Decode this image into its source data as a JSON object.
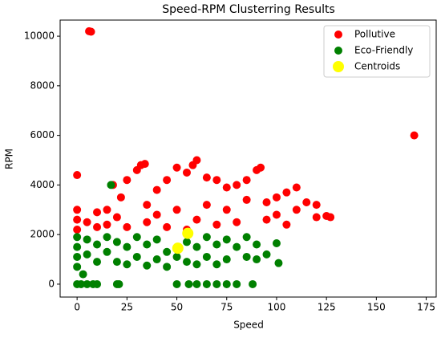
{
  "chart_data": {
    "type": "scatter",
    "title": "Speed-RPM Clusterring Results",
    "x_label": "Speed",
    "y_label": "RPM",
    "xlim": [
      -8.5,
      180
    ],
    "ylim": [
      -520,
      10650
    ],
    "xticks": [
      0,
      25,
      50,
      75,
      100,
      125,
      150,
      175
    ],
    "yticks": [
      0,
      2000,
      4000,
      6000,
      8000,
      10000
    ],
    "legend": "upper right",
    "series": [
      {
        "name": "Pollutive",
        "color": "#ff0000",
        "x": [
          0,
          6,
          7,
          169,
          0,
          0,
          0,
          5,
          10,
          10,
          15,
          15,
          18,
          20,
          22,
          25,
          25,
          30,
          32,
          34,
          35,
          35,
          40,
          40,
          45,
          45,
          50,
          50,
          55,
          58,
          60,
          60,
          65,
          65,
          70,
          70,
          75,
          75,
          80,
          80,
          85,
          85,
          90,
          92,
          95,
          95,
          100,
          100,
          105,
          110,
          110,
          115,
          120,
          120,
          125,
          127,
          105,
          55
        ],
        "y": [
          4400,
          10200,
          10180,
          6000,
          2200,
          2600,
          3000,
          2500,
          2300,
          2900,
          3000,
          2400,
          4000,
          2700,
          3500,
          4200,
          2300,
          4600,
          4800,
          4850,
          3200,
          2500,
          3800,
          2800,
          4200,
          2300,
          4700,
          3000,
          4500,
          4800,
          5000,
          2600,
          4300,
          3200,
          4200,
          2400,
          3900,
          3000,
          4000,
          2500,
          4200,
          3400,
          4600,
          4700,
          3300,
          2600,
          3500,
          2800,
          3700,
          3900,
          3000,
          3300,
          3200,
          2700,
          2750,
          2700,
          2400,
          2200
        ]
      },
      {
        "name": "Eco-Friendly",
        "color": "#008000",
        "x": [
          0,
          2,
          5,
          8,
          10,
          20,
          21,
          50,
          56,
          60,
          65,
          70,
          75,
          80,
          88,
          17,
          0,
          0,
          0,
          0,
          5,
          5,
          10,
          10,
          15,
          15,
          20,
          20,
          25,
          25,
          30,
          30,
          35,
          35,
          40,
          40,
          45,
          45,
          55,
          55,
          60,
          60,
          65,
          65,
          70,
          70,
          75,
          75,
          80,
          85,
          85,
          90,
          90,
          95,
          100,
          101,
          3,
          50
        ],
        "y": [
          0,
          0,
          0,
          0,
          0,
          0,
          0,
          0,
          0,
          0,
          0,
          0,
          0,
          0,
          0,
          4000,
          1900,
          1500,
          1100,
          700,
          1800,
          1200,
          1600,
          900,
          1900,
          1300,
          1700,
          900,
          1500,
          800,
          1900,
          1100,
          1600,
          750,
          1800,
          1000,
          1300,
          700,
          1700,
          900,
          1500,
          800,
          1900,
          1100,
          1600,
          800,
          1800,
          1000,
          1500,
          1900,
          1100,
          1600,
          1000,
          1200,
          1650,
          850,
          400,
          1100
        ]
      },
      {
        "name": "Centroids",
        "color": "#ffff00",
        "x": [
          50.5,
          55.5
        ],
        "y": [
          1450,
          2050
        ]
      }
    ]
  }
}
